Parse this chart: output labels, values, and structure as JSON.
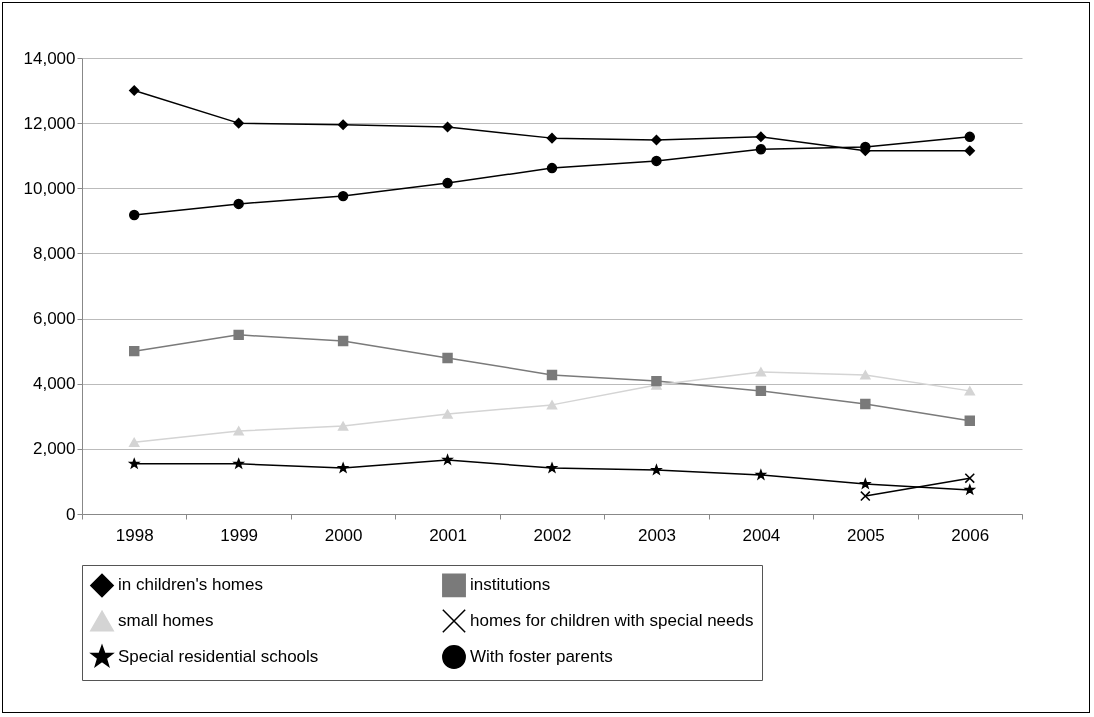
{
  "chart_data": {
    "type": "line",
    "categories": [
      "1998",
      "1999",
      "2000",
      "2001",
      "2002",
      "2003",
      "2004",
      "2005",
      "2006"
    ],
    "ylim": [
      0,
      14000
    ],
    "yticks": [
      0,
      {
        "value": 2000,
        "label": "2,000"
      },
      {
        "value": 4000,
        "label": "4,000"
      },
      {
        "value": 6000,
        "label": "6,000"
      },
      {
        "value": 8000,
        "label": "8,000"
      },
      {
        "value": 10000,
        "label": "10,000"
      },
      {
        "value": 12000,
        "label": "12,000"
      },
      {
        "value": 14000,
        "label": "14,000"
      }
    ],
    "grid": "y",
    "legend": "bottom",
    "series": [
      {
        "name": "in children's homes",
        "color": "#000000",
        "marker": "diamond",
        "values": [
          13000,
          12000,
          11950,
          11880,
          11540,
          11480,
          11580,
          11150,
          11150
        ]
      },
      {
        "name": "institutions",
        "color": "#7a7a7a",
        "marker": "square",
        "values": [
          5000,
          5500,
          5310,
          4790,
          4270,
          4080,
          3780,
          3380,
          2860
        ]
      },
      {
        "name": "small homes",
        "color": "#d4d4d4",
        "marker": "triangle",
        "values": [
          2200,
          2550,
          2700,
          3070,
          3350,
          3960,
          4360,
          4270,
          3780
        ]
      },
      {
        "name": "homes for children with special needs",
        "color": "#000000",
        "marker": "cross",
        "values": [
          null,
          null,
          null,
          null,
          null,
          null,
          null,
          550,
          1100
        ]
      },
      {
        "name": "Special residential schools",
        "color": "#000000",
        "marker": "star",
        "values": [
          1540,
          1540,
          1410,
          1660,
          1410,
          1350,
          1200,
          920,
          740
        ]
      },
      {
        "name": "With foster parents",
        "color": "#000000",
        "marker": "circle",
        "values": [
          9180,
          9520,
          9760,
          10160,
          10620,
          10840,
          11200,
          11270,
          11580
        ]
      }
    ]
  }
}
